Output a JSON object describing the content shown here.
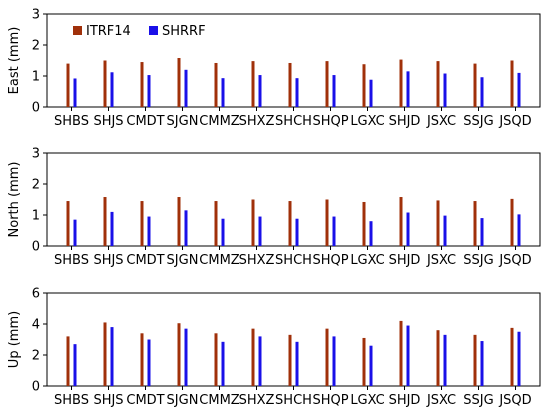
{
  "chart_data": [
    {
      "type": "bar",
      "ylabel": "East (mm)",
      "ylim": [
        0,
        3
      ],
      "yticks": [
        0,
        1,
        2,
        3
      ],
      "legend": "top-left",
      "categories": [
        "SHBS",
        "SHJS",
        "CMDT",
        "SJGN",
        "CMMZ",
        "SHXZ",
        "SHCH",
        "SHQP",
        "LGXC",
        "SHJD",
        "JSXC",
        "SSJG",
        "JSQD"
      ],
      "series": [
        {
          "name": "ITRF14",
          "color": "#a0300a",
          "values": [
            1.4,
            1.5,
            1.45,
            1.58,
            1.42,
            1.48,
            1.42,
            1.48,
            1.38,
            1.53,
            1.48,
            1.4,
            1.5
          ]
        },
        {
          "name": "SHRRF",
          "color": "#1a10e8",
          "values": [
            0.92,
            1.12,
            1.03,
            1.2,
            0.93,
            1.03,
            0.93,
            1.03,
            0.88,
            1.15,
            1.08,
            0.96,
            1.1
          ]
        }
      ]
    },
    {
      "type": "bar",
      "ylabel": "North (mm)",
      "ylim": [
        0,
        3
      ],
      "yticks": [
        0,
        1,
        2,
        3
      ],
      "categories": [
        "SHBS",
        "SHJS",
        "CMDT",
        "SJGN",
        "CMMZ",
        "SHXZ",
        "SHCH",
        "SHQP",
        "LGXC",
        "SHJD",
        "JSXC",
        "SSJG",
        "JSQD"
      ],
      "series": [
        {
          "name": "ITRF14",
          "color": "#a0300a",
          "values": [
            1.45,
            1.58,
            1.45,
            1.58,
            1.45,
            1.5,
            1.45,
            1.5,
            1.42,
            1.58,
            1.47,
            1.45,
            1.52
          ]
        },
        {
          "name": "SHRRF",
          "color": "#1a10e8",
          "values": [
            0.85,
            1.1,
            0.95,
            1.15,
            0.88,
            0.95,
            0.88,
            0.95,
            0.8,
            1.08,
            0.98,
            0.9,
            1.02
          ]
        }
      ]
    },
    {
      "type": "bar",
      "ylabel": "Up (mm)",
      "ylim": [
        0,
        6
      ],
      "yticks": [
        0,
        2,
        4,
        6
      ],
      "categories": [
        "SHBS",
        "SHJS",
        "CMDT",
        "SJGN",
        "CMMZ",
        "SHXZ",
        "SHCH",
        "SHQP",
        "LGXC",
        "SHJD",
        "JSXC",
        "SSJG",
        "JSQD"
      ],
      "series": [
        {
          "name": "ITRF14",
          "color": "#a0300a",
          "values": [
            3.2,
            4.1,
            3.4,
            4.05,
            3.4,
            3.7,
            3.3,
            3.7,
            3.1,
            4.2,
            3.6,
            3.3,
            3.75
          ]
        },
        {
          "name": "SHRRF",
          "color": "#1a10e8",
          "values": [
            2.7,
            3.8,
            3.0,
            3.7,
            2.85,
            3.2,
            2.85,
            3.2,
            2.6,
            3.9,
            3.3,
            2.9,
            3.5
          ]
        }
      ]
    }
  ]
}
